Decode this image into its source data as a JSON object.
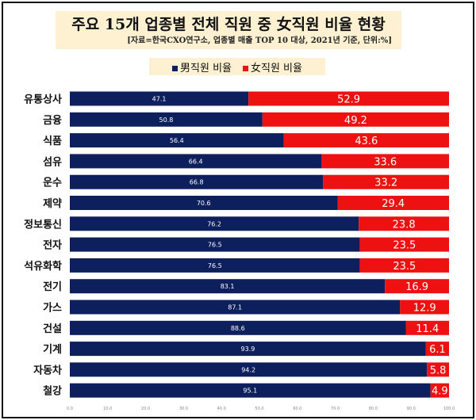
{
  "chart_data": {
    "type": "bar",
    "stacked": true,
    "orientation": "horizontal",
    "title": "주요 15개 업종별 전체 직원 중 女직원 비율 현황",
    "subtitle": "[자료=한국CXO연구소, 업종별 매출 TOP 10 대상, 2021년 기준, 단위:%]",
    "categories": [
      "유통상사",
      "금융",
      "식품",
      "섬유",
      "운수",
      "제약",
      "정보통신",
      "전자",
      "석유화학",
      "전기",
      "가스",
      "건설",
      "기계",
      "자동차",
      "철강"
    ],
    "series": [
      {
        "name": "男직원 비율",
        "color": "#0d1f5c",
        "values": [
          47.1,
          50.8,
          56.4,
          66.4,
          66.8,
          70.6,
          76.2,
          76.5,
          76.5,
          83.1,
          87.1,
          88.6,
          93.9,
          94.2,
          95.1
        ]
      },
      {
        "name": "女직원 비율",
        "color": "#ee1111",
        "values": [
          52.9,
          49.2,
          43.6,
          33.6,
          33.2,
          29.4,
          23.8,
          23.5,
          23.5,
          16.9,
          12.9,
          11.4,
          6.1,
          5.8,
          4.9
        ]
      }
    ],
    "xlim": [
      0,
      100
    ],
    "xticks": [
      "0.0",
      "10.0",
      "20.0",
      "30.0",
      "40.0",
      "50.0",
      "60.0",
      "70.0",
      "80.0",
      "90.0",
      "100.0"
    ],
    "grid": false,
    "legend": "top"
  }
}
